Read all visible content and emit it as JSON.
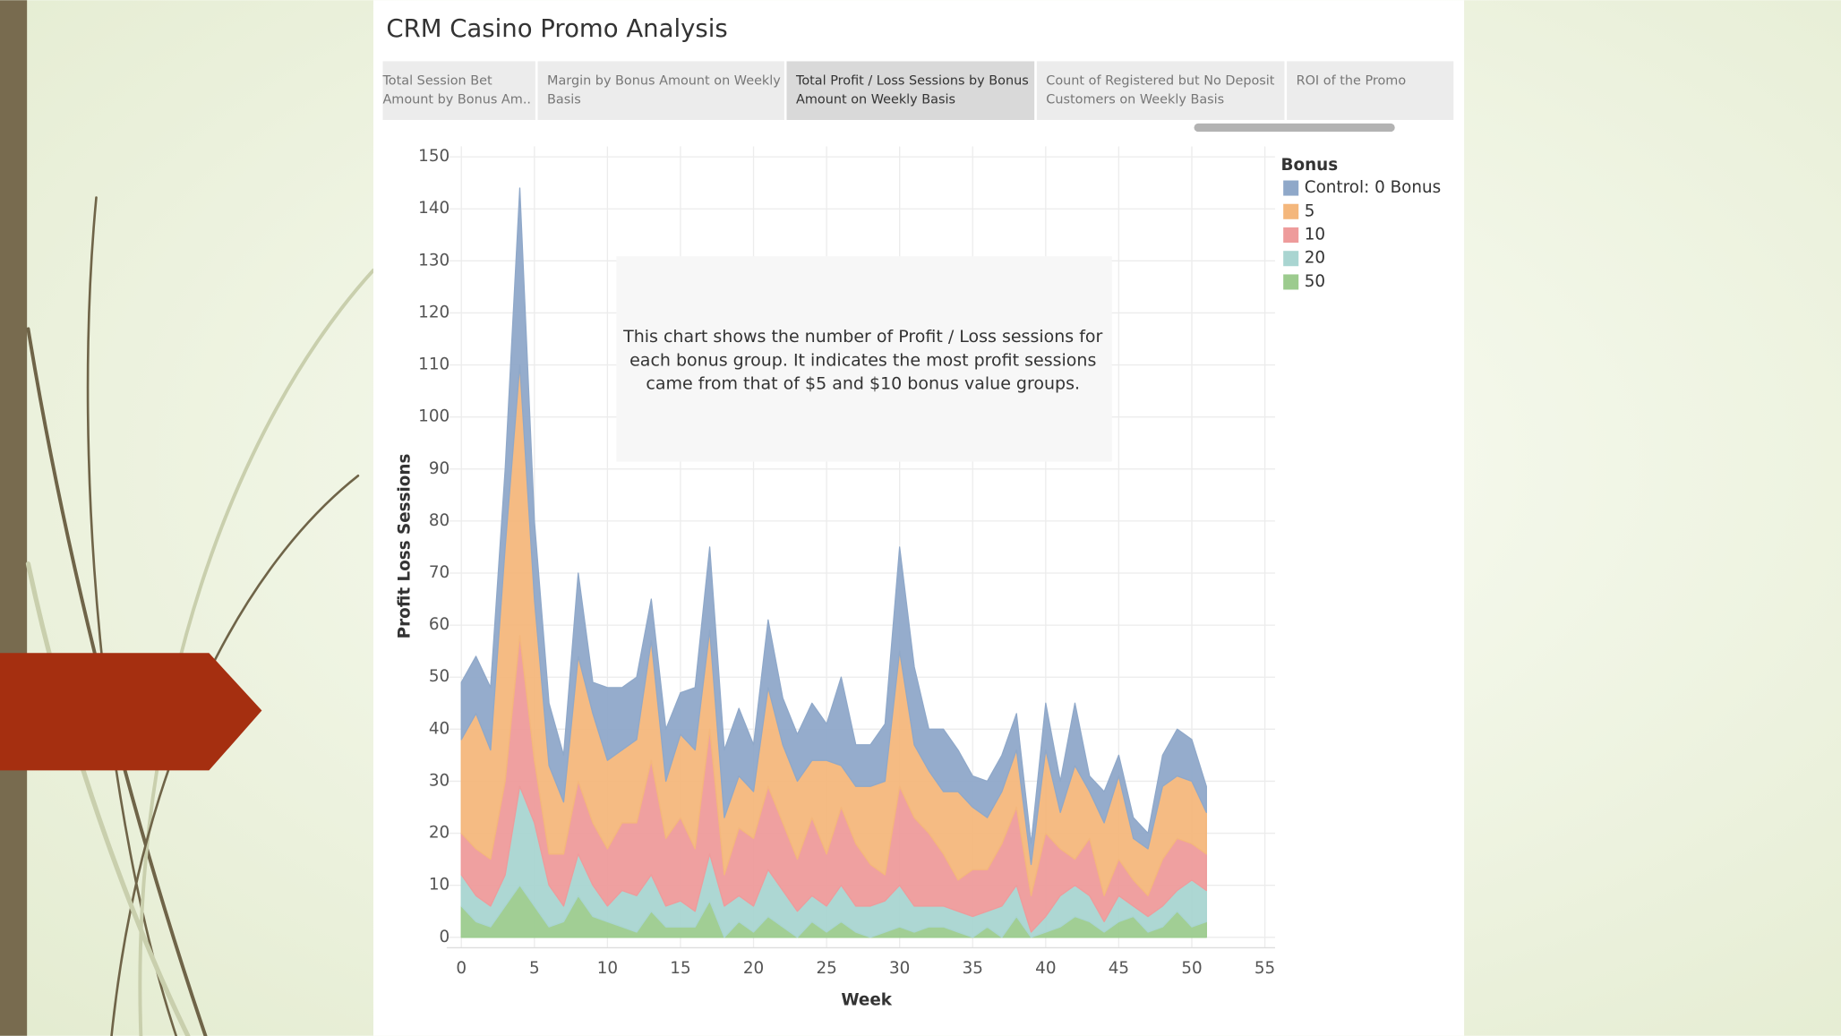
{
  "tabs": [
    [
      "Total Session Bet",
      "Amount by Bonus Am.."
    ],
    [
      "Margin by Bonus Amount on Weekly",
      "Basis"
    ],
    [
      "Total Profit / Loss Sessions by Bonus",
      "Amount on Weekly Basis"
    ],
    [
      "Count of Registered but No Deposit",
      "Customers on Weekly Basis"
    ],
    [
      "ROI of the Promo"
    ]
  ],
  "chart_data": {
    "type": "stacked-area",
    "title": "CRM Casino Promo Analysis",
    "annotation": [
      "This chart shows the number of Profit / Loss sessions for",
      "each bonus group. It indicates the most profit sessions",
      "came from that of $5 and $10 bonus value groups."
    ],
    "x_label": "Week",
    "y_label": "Profit Loss Sessions",
    "legend_title": "Bonus",
    "legend": "top-right",
    "grid": true,
    "xlim": [
      -1,
      55.7
    ],
    "ylim": [
      -2,
      152
    ],
    "xticks": [
      0,
      5,
      10,
      15,
      20,
      25,
      30,
      35,
      40,
      45,
      50,
      55
    ],
    "yticks": [
      0,
      10,
      20,
      30,
      40,
      50,
      60,
      70,
      80,
      90,
      100,
      110,
      120,
      130,
      140,
      150
    ],
    "x": [
      0,
      1,
      2,
      3,
      4,
      5,
      6,
      7,
      8,
      9,
      10,
      11,
      12,
      13,
      14,
      15,
      16,
      17,
      18,
      19,
      20,
      21,
      22,
      23,
      24,
      25,
      26,
      27,
      28,
      29,
      30,
      31,
      32,
      33,
      34,
      35,
      36,
      37,
      38,
      39,
      40,
      41,
      42,
      43,
      44,
      45,
      46,
      47,
      48,
      49,
      50,
      51
    ],
    "series": [
      {
        "name": "Control: 0 Bonus",
        "color": "#8fa8c9",
        "values": [
          11,
          11,
          12,
          15,
          34,
          15,
          12,
          9,
          16,
          6,
          14,
          12,
          12,
          8,
          10,
          8,
          12,
          16,
          13,
          13,
          9,
          13,
          9,
          9,
          11,
          7,
          17,
          8,
          8,
          11,
          20,
          15,
          8,
          12,
          8,
          6,
          7,
          7,
          7,
          4,
          9,
          6,
          12,
          3,
          6,
          4,
          4,
          3,
          6,
          9,
          8,
          5
        ]
      },
      {
        "name": "5",
        "color": "#f4b77c",
        "values": [
          18,
          26,
          21,
          45,
          52,
          31,
          17,
          10,
          24,
          21,
          17,
          14,
          16,
          23,
          11,
          16,
          19,
          19,
          11,
          10,
          9,
          19,
          15,
          15,
          11,
          18,
          8,
          11,
          15,
          18,
          26,
          14,
          12,
          12,
          17,
          12,
          10,
          10,
          11,
          6,
          16,
          7,
          18,
          9,
          14,
          16,
          8,
          9,
          14,
          12,
          12,
          8
        ]
      },
      {
        "name": "10",
        "color": "#ee9b9b",
        "values": [
          8,
          9,
          9,
          18,
          29,
          12,
          6,
          10,
          14,
          12,
          11,
          13,
          14,
          22,
          13,
          16,
          12,
          24,
          6,
          13,
          13,
          16,
          13,
          10,
          15,
          10,
          15,
          12,
          8,
          5,
          19,
          17,
          14,
          10,
          6,
          9,
          8,
          12,
          15,
          7,
          16,
          9,
          5,
          11,
          5,
          7,
          5,
          4,
          9,
          10,
          7,
          7
        ]
      },
      {
        "name": "20",
        "color": "#a9d5d1",
        "values": [
          6,
          5,
          4,
          6,
          19,
          16,
          8,
          3,
          8,
          6,
          3,
          7,
          7,
          7,
          4,
          5,
          3,
          9,
          6,
          5,
          5,
          9,
          7,
          5,
          5,
          5,
          7,
          5,
          6,
          6,
          8,
          5,
          4,
          4,
          4,
          4,
          3,
          6,
          6,
          1,
          3,
          6,
          6,
          5,
          2,
          5,
          2,
          3,
          4,
          4,
          9,
          6
        ]
      },
      {
        "name": "50",
        "color": "#9ccb8e",
        "values": [
          6,
          3,
          2,
          6,
          10,
          6,
          2,
          3,
          8,
          4,
          3,
          2,
          1,
          5,
          2,
          2,
          2,
          7,
          0,
          3,
          1,
          4,
          2,
          0,
          3,
          1,
          3,
          1,
          0,
          1,
          2,
          1,
          2,
          2,
          1,
          0,
          2,
          0,
          4,
          0,
          1,
          2,
          4,
          3,
          1,
          3,
          4,
          1,
          2,
          5,
          2,
          3
        ]
      }
    ]
  }
}
